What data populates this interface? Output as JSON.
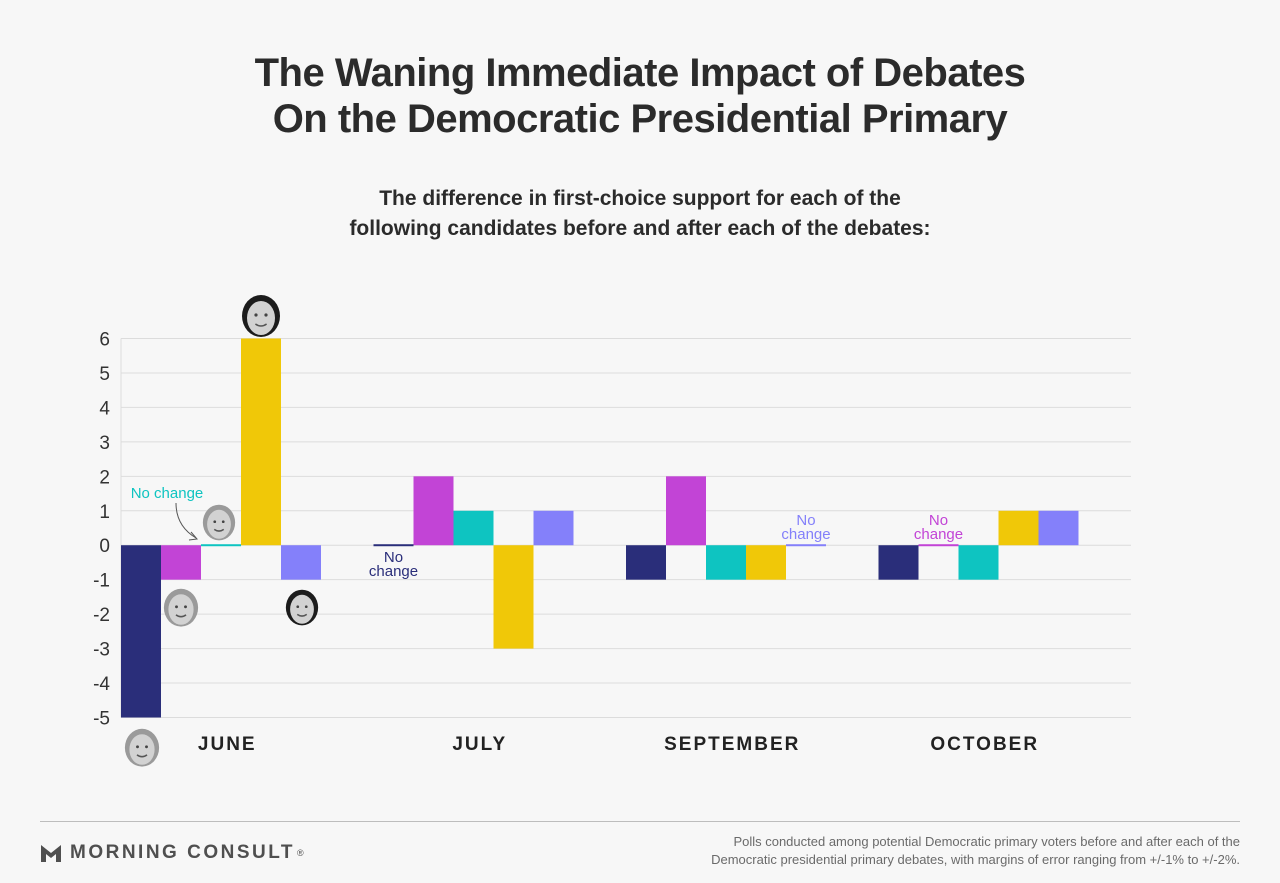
{
  "title": {
    "line1": "The Waning Immediate Impact of Debates",
    "line2": "On the Democratic Presidential Primary"
  },
  "subtitle": {
    "line1": "The difference in first-choice support for each of the",
    "line2": "following candidates before and after each of the debates:"
  },
  "chart_data": {
    "type": "bar",
    "categories": [
      "JUNE",
      "JULY",
      "SEPTEMBER",
      "OCTOBER"
    ],
    "ylim": [
      -5,
      6
    ],
    "yticks": [
      6,
      5,
      4,
      3,
      2,
      1,
      0,
      -1,
      -2,
      -3,
      -4,
      -5
    ],
    "grid": true,
    "series": [
      {
        "color": "#2a2e7a",
        "values": [
          -5,
          0,
          -1,
          -1
        ]
      },
      {
        "color": "#c244d6",
        "values": [
          -1,
          2,
          2,
          0
        ]
      },
      {
        "color": "#0ec4c1",
        "values": [
          0,
          1,
          -1,
          -1
        ]
      },
      {
        "color": "#f0c808",
        "values": [
          6,
          -3,
          -1,
          1
        ]
      },
      {
        "color": "#8480fa",
        "values": [
          -1,
          1,
          0,
          1
        ]
      }
    ],
    "annotations": [
      {
        "text": "No change",
        "category": "JUNE",
        "series_index": 2,
        "color": "#0ec4c1"
      },
      {
        "text": "No change",
        "category": "JULY",
        "series_index": 0,
        "color": "#2a2e7a"
      },
      {
        "text": "No change",
        "category": "SEPTEMBER",
        "series_index": 4,
        "color": "#8480fa"
      },
      {
        "text": "No change",
        "category": "OCTOBER",
        "series_index": 1,
        "color": "#c244d6"
      }
    ]
  },
  "footer": {
    "brand": "MORNING CONSULT",
    "brand_mark": "®",
    "brand_icon": "morning-consult-logo-icon",
    "note_line1": "Polls conducted among potential Democratic primary voters before and after each of the",
    "note_line2": "Democratic presidential primary debates, with margins of error ranging from +/-1% to +/-2%."
  }
}
